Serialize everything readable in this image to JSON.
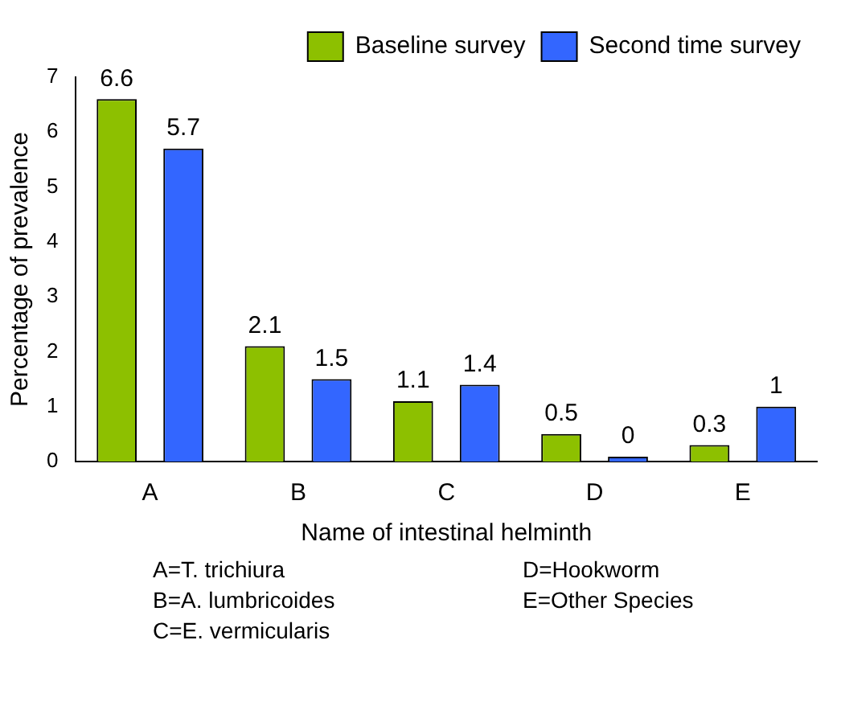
{
  "chart_data": {
    "type": "bar",
    "xlabel": "Name of intestinal helminth",
    "ylabel": "Percentage of prevalence",
    "categories": [
      "A",
      "B",
      "C",
      "D",
      "E"
    ],
    "series": [
      {
        "name": "Baseline survey",
        "color": "#8dc000",
        "values": [
          6.6,
          2.1,
          1.1,
          0.5,
          0.3
        ]
      },
      {
        "name": "Second time survey",
        "color": "#3366ff",
        "values": [
          5.7,
          1.5,
          1.4,
          0,
          1
        ]
      }
    ],
    "ylim": [
      0,
      7
    ],
    "yticks": [
      0,
      1,
      2,
      3,
      4,
      5,
      6,
      7
    ],
    "grid": false,
    "legend": "top right",
    "data_labels": true,
    "annotations": [
      "A=T. trichiura",
      "D=Hookworm",
      "B=A. lumbricoides",
      "E=Other Species",
      "C=E. vermicularis"
    ]
  }
}
